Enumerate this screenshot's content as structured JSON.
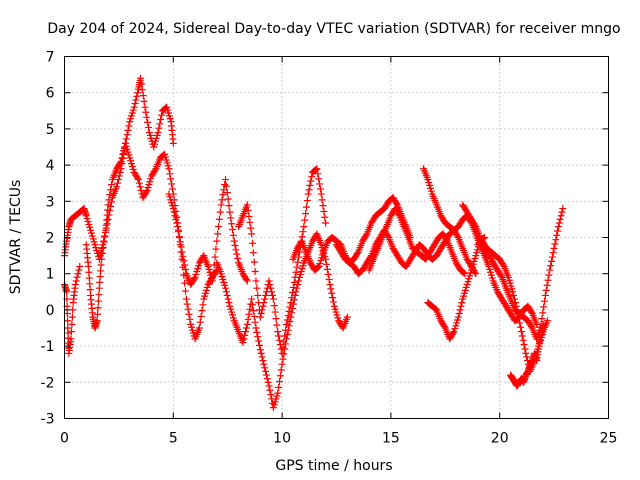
{
  "chart_data": {
    "type": "scatter",
    "title": "Day 204 of 2024, Sidereal Day-to-day VTEC variation (SDTVAR) for receiver mngo",
    "xlabel": "GPS time / hours",
    "ylabel": "SDTVAR / TECUs",
    "xlim": [
      0,
      25
    ],
    "ylim": [
      -3,
      7
    ],
    "xticks": [
      "0",
      "5",
      "10",
      "15",
      "20",
      "25"
    ],
    "yticks": [
      "-3",
      "-2",
      "-1",
      "0",
      "1",
      "2",
      "3",
      "4",
      "5",
      "6",
      "7"
    ],
    "grid": true,
    "marker": "plus",
    "color": "#ff0000",
    "series": [
      {
        "name": "track-1",
        "x": [
          0.0,
          0.1,
          0.2,
          0.3,
          0.5,
          0.7,
          0.9,
          1.0,
          1.2,
          1.4,
          1.6,
          1.8,
          2.0,
          2.2,
          2.4,
          2.6,
          2.8,
          3.0,
          3.2,
          3.4,
          3.5,
          3.7,
          3.9,
          4.1,
          4.3,
          4.5,
          4.7,
          4.9,
          5.0
        ],
        "y": [
          1.5,
          1.9,
          2.3,
          2.5,
          2.6,
          2.7,
          2.8,
          2.6,
          2.2,
          1.8,
          1.4,
          1.9,
          2.5,
          3.1,
          3.4,
          3.9,
          4.6,
          5.2,
          5.6,
          6.1,
          6.4,
          5.6,
          4.9,
          4.5,
          4.9,
          5.5,
          5.6,
          5.2,
          4.6
        ]
      },
      {
        "name": "track-2",
        "x": [
          0.0,
          0.1,
          0.15,
          0.2,
          0.3,
          0.4,
          0.5,
          0.7
        ],
        "y": [
          0.7,
          0.5,
          -0.5,
          -1.2,
          -0.8,
          0.2,
          0.7,
          1.2
        ]
      },
      {
        "name": "track-3",
        "x": [
          1.0,
          1.1,
          1.2,
          1.3,
          1.4,
          1.5,
          1.6,
          1.7,
          1.9,
          2.0,
          2.2,
          2.4,
          2.6,
          2.8,
          3.0,
          3.2,
          3.4,
          3.6,
          3.8,
          4.0,
          4.2,
          4.4,
          4.6,
          4.8,
          5.0,
          5.2,
          5.4,
          5.6,
          5.8,
          6.0,
          6.2,
          6.4,
          6.6,
          6.8,
          7.0
        ],
        "y": [
          1.8,
          1.2,
          0.4,
          -0.2,
          -0.5,
          -0.3,
          0.6,
          1.4,
          2.2,
          2.9,
          3.6,
          3.9,
          4.1,
          4.6,
          4.2,
          3.8,
          3.6,
          3.1,
          3.3,
          3.7,
          3.9,
          4.2,
          4.3,
          3.9,
          3.2,
          2.4,
          1.4,
          0.3,
          -0.4,
          -0.8,
          -0.5,
          0.3,
          0.7,
          0.9,
          1.1
        ]
      },
      {
        "name": "track-4",
        "x": [
          4.8,
          5.0,
          5.2,
          5.4,
          5.6,
          5.8,
          6.0,
          6.2,
          6.4,
          6.6,
          6.8,
          7.0,
          7.2,
          7.4,
          7.6,
          7.8,
          8.0,
          8.2,
          8.4
        ],
        "y": [
          3.2,
          2.8,
          2.3,
          1.6,
          1.0,
          0.7,
          0.9,
          1.3,
          1.5,
          1.2,
          0.8,
          1.9,
          2.9,
          3.6,
          2.7,
          1.9,
          1.3,
          1.0,
          0.8
        ]
      },
      {
        "name": "track-5",
        "x": [
          7.0,
          7.2,
          7.4,
          7.6,
          7.8,
          8.0,
          8.2,
          8.4,
          8.6,
          8.8,
          9.0,
          9.2,
          9.4,
          9.6,
          9.8,
          10.0,
          10.2,
          10.4,
          10.6,
          10.8,
          11.0,
          11.2,
          11.4,
          11.6,
          11.8,
          12.0,
          12.2,
          12.4,
          12.6,
          12.8,
          13.0
        ],
        "y": [
          1.3,
          1.0,
          0.6,
          0.1,
          -0.3,
          -0.6,
          -0.9,
          -0.4,
          0.3,
          -0.5,
          -1.1,
          -1.6,
          -2.1,
          -2.7,
          -2.3,
          -1.5,
          -0.8,
          -0.2,
          0.4,
          0.9,
          1.3,
          1.6,
          1.9,
          2.1,
          1.8,
          1.4,
          0.7,
          0.1,
          -0.3,
          -0.5,
          -0.2
        ]
      },
      {
        "name": "track-6",
        "x": [
          8.0,
          8.2,
          8.4,
          8.6,
          8.8,
          9.0,
          9.2,
          9.4,
          9.6,
          9.8,
          10.0,
          10.2,
          10.4,
          10.6,
          10.8,
          11.0,
          11.2,
          11.4,
          11.6,
          11.8,
          12.0
        ],
        "y": [
          2.3,
          2.6,
          2.9,
          2.1,
          0.8,
          -0.2,
          0.3,
          0.8,
          0.3,
          -0.6,
          -1.2,
          -0.4,
          0.2,
          0.9,
          1.6,
          2.3,
          3.2,
          3.8,
          3.9,
          3.2,
          2.4
        ]
      },
      {
        "name": "track-7",
        "x": [
          10.5,
          10.7,
          10.9,
          11.1,
          11.3,
          11.5,
          11.7,
          11.9,
          12.1,
          12.3,
          12.5,
          12.7,
          12.9,
          13.1,
          13.3,
          13.5,
          13.7,
          13.9,
          14.1,
          14.3,
          14.5,
          14.7,
          14.9,
          15.1,
          15.3,
          15.5,
          15.7,
          15.9
        ],
        "y": [
          1.4,
          1.7,
          1.9,
          1.6,
          1.3,
          1.1,
          1.2,
          1.6,
          1.9,
          2.0,
          1.9,
          1.8,
          1.5,
          1.3,
          1.4,
          1.6,
          1.9,
          2.1,
          2.4,
          2.6,
          2.7,
          2.8,
          3.0,
          3.1,
          2.9,
          2.6,
          2.3,
          2.0
        ]
      },
      {
        "name": "track-8",
        "x": [
          12.5,
          12.7,
          12.9,
          13.1,
          13.3,
          13.5,
          13.7,
          13.9,
          14.1,
          14.3,
          14.5,
          14.7,
          14.9,
          15.1,
          15.3,
          15.5,
          15.7,
          15.9,
          16.1,
          16.3,
          16.5,
          16.7,
          16.9,
          17.1,
          17.3,
          17.5,
          17.7,
          17.9,
          18.1,
          18.3,
          18.5,
          18.7,
          18.9
        ],
        "y": [
          1.8,
          1.6,
          1.4,
          1.3,
          1.2,
          1.0,
          1.1,
          1.3,
          1.5,
          1.8,
          2.0,
          2.2,
          2.0,
          1.7,
          1.5,
          1.3,
          1.2,
          1.4,
          1.6,
          1.8,
          1.7,
          1.5,
          1.4,
          1.5,
          1.7,
          1.9,
          2.1,
          2.2,
          2.0,
          1.7,
          1.4,
          1.2,
          1.0
        ]
      },
      {
        "name": "track-9",
        "x": [
          14.0,
          14.2,
          14.4,
          14.6,
          14.8,
          15.0,
          15.2,
          15.4,
          15.6,
          15.8,
          16.0,
          16.2,
          16.4,
          16.6,
          16.8,
          17.0,
          17.2,
          17.4,
          17.6,
          17.8,
          18.0,
          18.2,
          18.4
        ],
        "y": [
          1.1,
          1.4,
          1.7,
          2.0,
          2.3,
          2.6,
          2.8,
          2.6,
          2.3,
          2.0,
          1.7,
          1.6,
          1.5,
          1.4,
          1.6,
          1.8,
          2.0,
          2.1,
          1.9,
          1.6,
          1.3,
          1.1,
          1.0
        ]
      },
      {
        "name": "track-10",
        "x": [
          16.5,
          16.7,
          16.9,
          17.1,
          17.3,
          17.5,
          17.7,
          17.9,
          18.1,
          18.3,
          18.5,
          18.7,
          18.9,
          19.1,
          19.3,
          19.5,
          19.7,
          19.9,
          20.1,
          20.3,
          20.5,
          20.7,
          20.9,
          21.1,
          21.3,
          21.5,
          21.7
        ],
        "y": [
          3.9,
          3.6,
          3.2,
          2.9,
          2.6,
          2.4,
          2.3,
          2.2,
          2.3,
          2.5,
          2.6,
          2.4,
          2.1,
          1.8,
          1.5,
          1.2,
          0.8,
          0.5,
          0.3,
          0.1,
          -0.1,
          -0.3,
          -0.2,
          0.0,
          0.1,
          -0.1,
          -0.4
        ]
      },
      {
        "name": "track-11",
        "x": [
          16.7,
          16.9,
          17.1,
          17.3,
          17.5,
          17.7,
          17.9,
          18.1,
          18.3,
          18.5,
          18.7,
          18.9,
          19.1,
          19.3
        ],
        "y": [
          0.2,
          0.1,
          0.0,
          -0.3,
          -0.5,
          -0.8,
          -0.6,
          -0.2,
          0.3,
          0.7,
          1.1,
          1.5,
          1.9,
          2.0
        ]
      },
      {
        "name": "track-12",
        "x": [
          18.3,
          18.5,
          18.7,
          18.9,
          19.1,
          19.3,
          19.5,
          19.7,
          19.9,
          20.1,
          20.3,
          20.5,
          20.7,
          20.9,
          21.1,
          21.3,
          21.5,
          21.7,
          21.9,
          22.1,
          22.3,
          22.5,
          22.7,
          22.9
        ],
        "y": [
          2.9,
          2.7,
          2.5,
          2.3,
          2.0,
          1.7,
          1.5,
          1.3,
          1.1,
          0.9,
          0.6,
          0.3,
          0.0,
          -0.1,
          -0.2,
          -0.3,
          -0.5,
          -0.8,
          -0.4,
          0.4,
          1.1,
          1.7,
          2.3,
          2.8
        ]
      },
      {
        "name": "track-13",
        "x": [
          19.0,
          19.2,
          19.4,
          19.6,
          19.8,
          20.0,
          20.2,
          20.4,
          20.6,
          20.8,
          21.0,
          21.2,
          21.4,
          21.6,
          21.8,
          22.0,
          22.2
        ],
        "y": [
          1.8,
          1.9,
          1.7,
          1.6,
          1.5,
          1.4,
          1.2,
          0.9,
          0.5,
          0.0,
          -0.6,
          -1.2,
          -1.7,
          -1.4,
          -1.0,
          -0.6,
          -0.3
        ]
      },
      {
        "name": "track-14",
        "x": [
          20.5,
          20.6,
          20.7,
          20.8,
          20.9,
          21.0,
          21.1,
          21.2,
          21.3,
          21.4,
          21.5,
          21.6,
          21.7,
          21.8,
          21.9,
          22.0
        ],
        "y": [
          -1.8,
          -1.9,
          -2.0,
          -2.1,
          -2.0,
          -1.9,
          -2.0,
          -1.8,
          -1.7,
          -1.5,
          -1.4,
          -1.2,
          -1.4,
          -1.0,
          -0.7,
          -0.4
        ]
      }
    ]
  }
}
